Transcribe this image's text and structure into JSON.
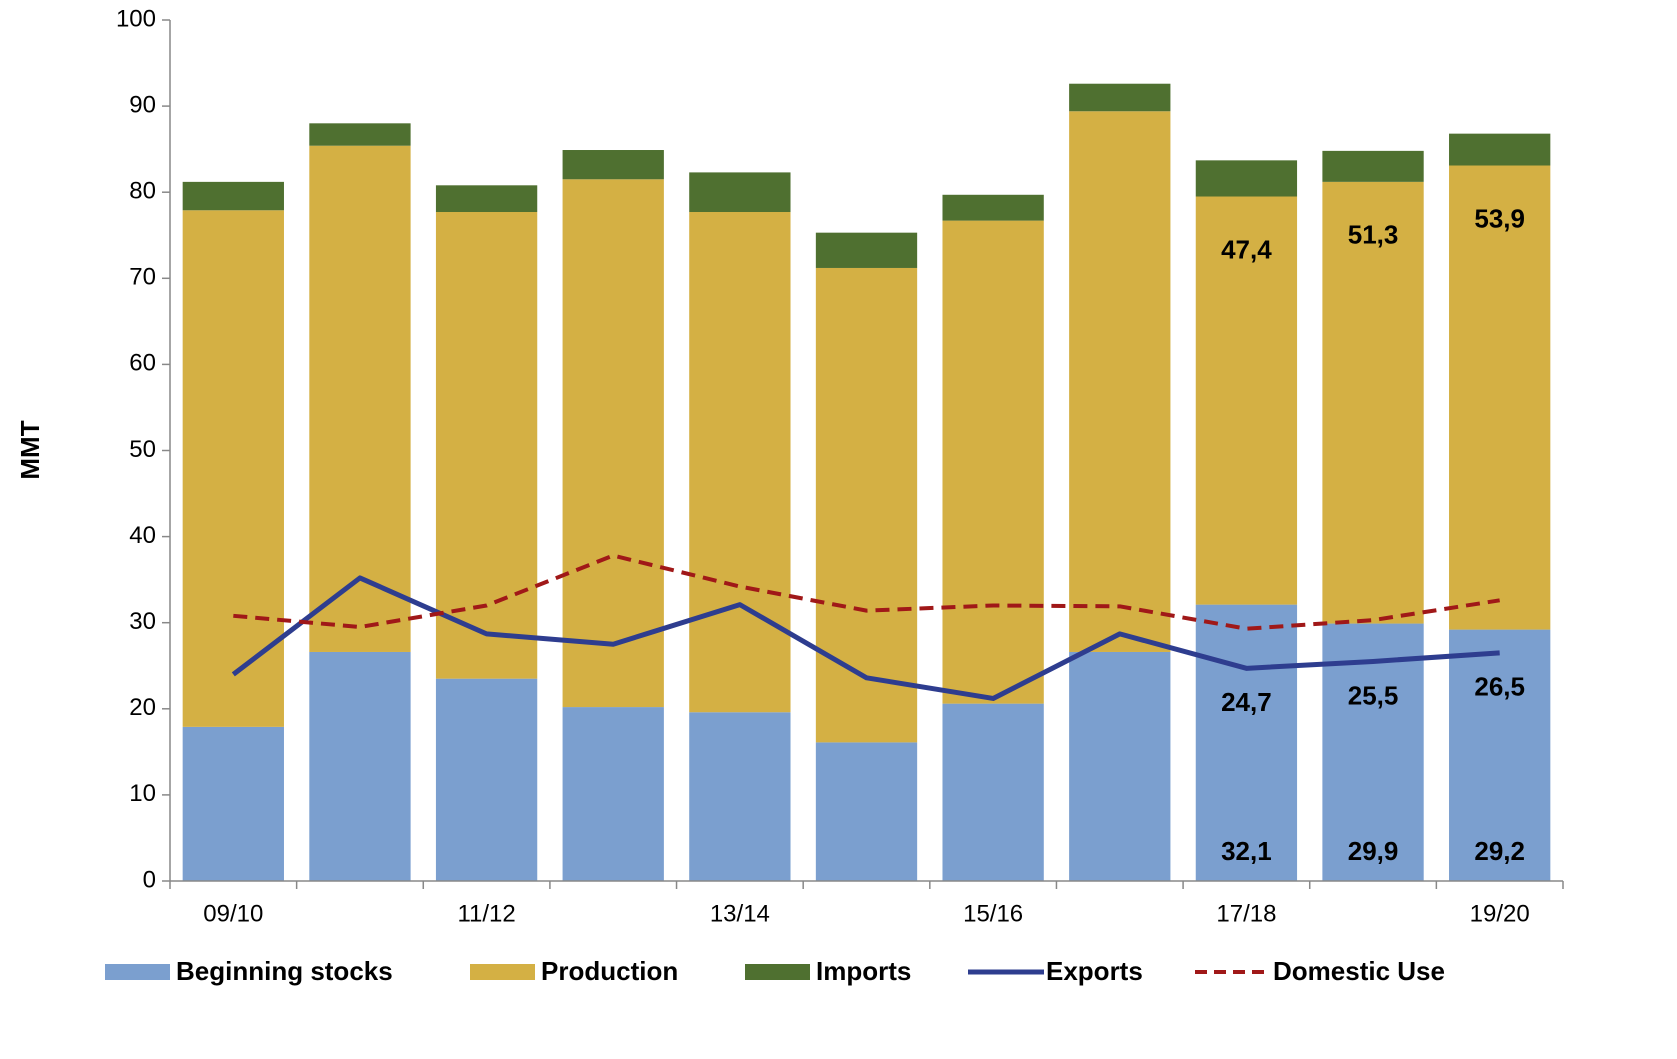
{
  "chart_data": {
    "type": "bar",
    "y_label": "MMT",
    "categories": [
      "09/10",
      null,
      "11/12",
      null,
      "13/14",
      null,
      "15/16",
      null,
      "17/18",
      null,
      "19/20"
    ],
    "ylim": [
      0,
      100
    ],
    "yticks": [
      0,
      10,
      20,
      30,
      40,
      50,
      60,
      70,
      80,
      90,
      100
    ],
    "stacked": true,
    "legend": "bottom",
    "series": [
      {
        "name": "Beginning stocks",
        "type": "bar",
        "color": "#7b9fcf",
        "values": [
          17.9,
          26.6,
          23.5,
          20.2,
          19.6,
          16.1,
          20.6,
          26.6,
          32.1,
          29.9,
          29.2
        ],
        "value_labels": [
          null,
          null,
          null,
          null,
          null,
          null,
          null,
          null,
          "32,1",
          "29,9",
          "29,2"
        ]
      },
      {
        "name": "Production",
        "type": "bar",
        "color": "#d4b044",
        "values": [
          60.0,
          58.8,
          54.2,
          61.3,
          58.1,
          55.1,
          56.1,
          62.8,
          47.4,
          51.3,
          53.9
        ],
        "value_labels": [
          null,
          null,
          null,
          null,
          null,
          null,
          null,
          null,
          "47,4",
          "51,3",
          "53,9"
        ]
      },
      {
        "name": "Imports",
        "type": "bar",
        "color": "#4f7030",
        "values": [
          3.3,
          2.6,
          3.1,
          3.4,
          4.6,
          4.1,
          3.0,
          3.2,
          4.2,
          3.6,
          3.7
        ]
      },
      {
        "name": "Exports",
        "type": "line",
        "color": "#2e3d8f",
        "dashed": false,
        "values": [
          24.0,
          35.2,
          28.7,
          27.5,
          32.1,
          23.6,
          21.2,
          28.7,
          24.7,
          25.5,
          26.5
        ],
        "value_labels": [
          null,
          null,
          null,
          null,
          null,
          null,
          null,
          null,
          "24,7",
          "25,5",
          "26,5"
        ]
      },
      {
        "name": "Domestic Use",
        "type": "line",
        "color": "#a01818",
        "dashed": true,
        "values": [
          30.8,
          29.5,
          32.0,
          37.8,
          34.2,
          31.4,
          32.0,
          31.9,
          29.3,
          30.3,
          32.6
        ]
      }
    ]
  }
}
